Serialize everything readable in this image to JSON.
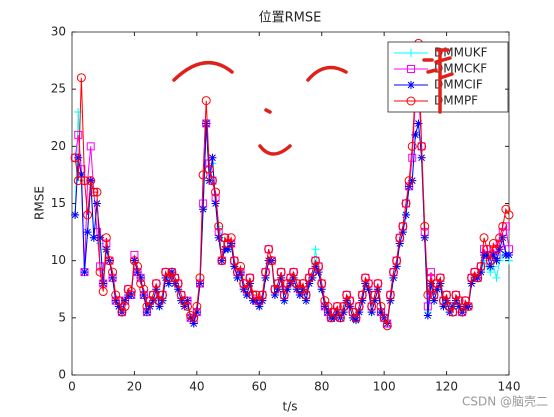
{
  "chart_data": {
    "type": "line",
    "title": "位置RMSE",
    "xlabel": "t/s",
    "ylabel": "RMSE",
    "xlim": [
      0,
      140
    ],
    "xticks": [
      0,
      20,
      40,
      60,
      80,
      100,
      120,
      140
    ],
    "ylim": [
      0,
      30
    ],
    "yticks": [
      0,
      5,
      10,
      15,
      20,
      25,
      30
    ],
    "legend": "upper right",
    "watermark": "CSDN @脑壳二",
    "x": [
      1,
      2,
      3,
      4,
      5,
      6,
      7,
      8,
      9,
      10,
      11,
      12,
      13,
      14,
      15,
      16,
      17,
      18,
      19,
      20,
      21,
      22,
      23,
      24,
      25,
      26,
      27,
      28,
      29,
      30,
      31,
      32,
      33,
      34,
      35,
      36,
      37,
      38,
      39,
      40,
      41,
      42,
      43,
      44,
      45,
      46,
      47,
      48,
      49,
      50,
      51,
      52,
      53,
      54,
      55,
      56,
      57,
      58,
      59,
      60,
      61,
      62,
      63,
      64,
      65,
      66,
      67,
      68,
      69,
      70,
      71,
      72,
      73,
      74,
      75,
      76,
      77,
      78,
      79,
      80,
      81,
      82,
      83,
      84,
      85,
      86,
      87,
      88,
      89,
      90,
      91,
      92,
      93,
      94,
      95,
      96,
      97,
      98,
      99,
      100,
      101,
      102,
      103,
      104,
      105,
      106,
      107,
      108,
      109,
      110,
      111,
      112,
      113,
      114,
      115,
      116,
      117,
      118,
      119,
      120,
      121,
      122,
      123,
      124,
      125,
      126,
      127,
      128,
      129,
      130,
      131,
      132,
      133,
      134,
      135,
      136,
      137,
      138,
      139,
      140
    ],
    "series": [
      {
        "name": "DMMUKF",
        "color": "#00ffff",
        "marker": "plus",
        "values": [
          14,
          23,
          17,
          9,
          12.5,
          17,
          12,
          15,
          11.5,
          8,
          11,
          10,
          8.5,
          6.5,
          6,
          5.5,
          6.5,
          7,
          7,
          10,
          9,
          8.5,
          7,
          5.5,
          6,
          6.5,
          7.5,
          6,
          6.5,
          8.5,
          8,
          9,
          8,
          7.5,
          6.5,
          6,
          6.5,
          5,
          4.5,
          5.5,
          8,
          14.5,
          22,
          17,
          18.5,
          15,
          13,
          12,
          11,
          11,
          11.5,
          9.5,
          8.5,
          9,
          7.5,
          7,
          8,
          6.5,
          6.5,
          6,
          6.5,
          8.5,
          10,
          10,
          7,
          7.5,
          8.5,
          6.5,
          7.5,
          8,
          8.5,
          7.5,
          7,
          7.5,
          6.5,
          8,
          8.5,
          11,
          9,
          7.5,
          6,
          5.5,
          5,
          5,
          5.5,
          5,
          5.5,
          6.5,
          6,
          5,
          4.8,
          5.5,
          6.5,
          8,
          7.5,
          5.5,
          6.5,
          7.5,
          5.5,
          5,
          4.5,
          6.5,
          8.5,
          9.5,
          11.5,
          12.5,
          14,
          16.5,
          17,
          21,
          22,
          19,
          12,
          5.5,
          8,
          6.5,
          7.5,
          8,
          6,
          6.5,
          5.5,
          6,
          6.5,
          6,
          5.5,
          6,
          6,
          8,
          8.5,
          8.5,
          9,
          10,
          9.5,
          9,
          9.5,
          8.5,
          10,
          10.5,
          10.5,
          10
        ]
      },
      {
        "name": "DMMCKF",
        "color": "#ff00ff",
        "marker": "square",
        "values": [
          19,
          21,
          18,
          9,
          17,
          20,
          16,
          12.5,
          9.5,
          8,
          11.5,
          10,
          8.5,
          6.5,
          6.5,
          5.5,
          6.5,
          7.5,
          7,
          10.5,
          9,
          8.5,
          7,
          5.5,
          6.5,
          7,
          8,
          6.5,
          7,
          9,
          8.5,
          9,
          8.5,
          8,
          7,
          6.5,
          6.5,
          5,
          4.8,
          5.5,
          8,
          15,
          22,
          18.5,
          17,
          15.5,
          12.5,
          10,
          12,
          11.5,
          11.5,
          10,
          9,
          9,
          8,
          7.5,
          8.5,
          7,
          6.5,
          6.5,
          7,
          9,
          11,
          10,
          7.5,
          8,
          9,
          7,
          8,
          8.5,
          9,
          8,
          7.5,
          8,
          7,
          8.5,
          9,
          10,
          9.5,
          8,
          6,
          5.5,
          5,
          5.5,
          6,
          5,
          6,
          7,
          6.5,
          5.5,
          5,
          6,
          7,
          8.5,
          8,
          6,
          7,
          8,
          5.5,
          5,
          4.5,
          7,
          9,
          10,
          12,
          13,
          15,
          16.5,
          19,
          24,
          25,
          20,
          12.5,
          6,
          9,
          7,
          8,
          8.5,
          6.5,
          7,
          6,
          5.5,
          7,
          6.5,
          5.5,
          6.5,
          6,
          8.5,
          9,
          8.5,
          9.5,
          11,
          10.5,
          10,
          11,
          10.5,
          11.5,
          12.5,
          13,
          11
        ]
      },
      {
        "name": "DMMCIF",
        "color": "#0000ff",
        "marker": "star",
        "values": [
          14,
          19,
          17.5,
          9,
          12.5,
          17,
          12,
          15,
          12,
          8,
          11,
          10,
          8.5,
          6.5,
          6,
          5.5,
          6.5,
          7,
          7,
          10,
          9,
          8.5,
          7,
          5.5,
          6,
          6.5,
          7.5,
          6,
          6.5,
          8.5,
          8,
          9,
          8,
          7.5,
          6.5,
          6,
          6.5,
          5,
          4.5,
          5.5,
          8,
          14.5,
          22,
          17,
          19,
          15,
          12,
          10,
          11,
          11,
          11.5,
          9.5,
          8.5,
          9,
          7.5,
          7,
          8,
          6.5,
          6.5,
          6,
          6.5,
          8.5,
          10,
          10,
          7,
          7.5,
          8.5,
          6.5,
          7.5,
          8,
          8.5,
          7.5,
          7,
          7.5,
          6.5,
          8,
          8.5,
          9.5,
          9,
          7.5,
          6,
          5.5,
          5,
          5,
          5.5,
          5,
          5.5,
          6.5,
          6,
          5,
          4.8,
          5.5,
          6.5,
          8,
          7.5,
          5.5,
          6.5,
          7.5,
          5.5,
          5,
          4.5,
          6.5,
          8.5,
          9.5,
          11.5,
          12.5,
          14,
          16.5,
          17,
          21,
          22,
          19,
          12,
          5.2,
          8,
          6.5,
          7.5,
          8,
          6,
          6.5,
          5.5,
          6,
          6.5,
          6,
          5.5,
          6,
          6,
          8,
          8.5,
          8.5,
          9,
          10.5,
          10.5,
          9.5,
          10.5,
          10,
          11,
          12,
          10.5,
          10.5
        ]
      },
      {
        "name": "DMMPF",
        "color": "#ff0000",
        "marker": "circle",
        "values": [
          19,
          17,
          26,
          17,
          14,
          17,
          16,
          16,
          9,
          7.3,
          12,
          10,
          9,
          7,
          6.5,
          5.5,
          6,
          7.5,
          7.3,
          10,
          9.5,
          8,
          7.5,
          6,
          6.5,
          7,
          8,
          6.5,
          7,
          9,
          8.5,
          9,
          8.5,
          8,
          7,
          6.5,
          6,
          5.2,
          5,
          6,
          8.5,
          17.5,
          24,
          18,
          17,
          16,
          13,
          10,
          12,
          11.5,
          12,
          10,
          9,
          9.5,
          8,
          7.5,
          8.5,
          7,
          7,
          6.5,
          7,
          9,
          11,
          10,
          7.5,
          8,
          9,
          7,
          8,
          8.5,
          9,
          8,
          7.5,
          8,
          7,
          8.5,
          9,
          10,
          9.5,
          8,
          6.5,
          6,
          5,
          5.5,
          6,
          5,
          6,
          7,
          6.5,
          5.5,
          5,
          6,
          7,
          8.5,
          8,
          6,
          7,
          8,
          6,
          5,
          4.3,
          7,
          9,
          10,
          12,
          13,
          15,
          17,
          20,
          25,
          29,
          20,
          13,
          7,
          8.5,
          7,
          8,
          8.5,
          6.5,
          7,
          6,
          5.5,
          7,
          6.5,
          5.5,
          6.5,
          6,
          8.5,
          9,
          8.5,
          9.5,
          12,
          11,
          10,
          11.5,
          11,
          12,
          13,
          14.5,
          14
        ]
      }
    ]
  }
}
